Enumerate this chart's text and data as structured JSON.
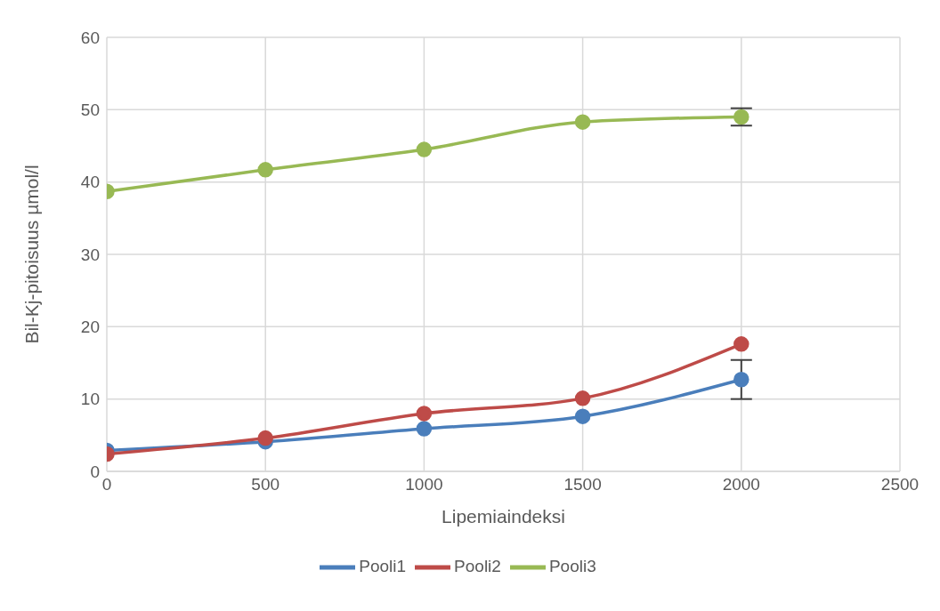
{
  "chart_data": {
    "type": "line",
    "xlabel": "Lipemiaindeksi",
    "ylabel": "Bil-Kj-pitoisuus µmol/l",
    "x": [
      0,
      500,
      1000,
      1500,
      2000
    ],
    "series": [
      {
        "name": "Pooli1",
        "color": "#4a7ebb",
        "values": [
          2.9,
          4.1,
          5.9,
          7.6,
          12.7
        ],
        "errors": [
          null,
          null,
          null,
          null,
          2.7
        ]
      },
      {
        "name": "Pooli2",
        "color": "#be4b48",
        "values": [
          2.4,
          4.6,
          8.0,
          10.1,
          17.6
        ]
      },
      {
        "name": "Pooli3",
        "color": "#98b954",
        "values": [
          38.7,
          41.7,
          44.5,
          48.3,
          49.0
        ],
        "errors": [
          null,
          null,
          null,
          null,
          1.2
        ]
      }
    ],
    "xlim": [
      0,
      2500
    ],
    "xticks": [
      0,
      500,
      1000,
      1500,
      2000,
      2500
    ],
    "ylim": [
      0,
      60
    ],
    "yticks": [
      0,
      10,
      20,
      30,
      40,
      50,
      60
    ],
    "grid": true,
    "legend": "bottom",
    "marker": "circle",
    "line_style": "solid"
  }
}
